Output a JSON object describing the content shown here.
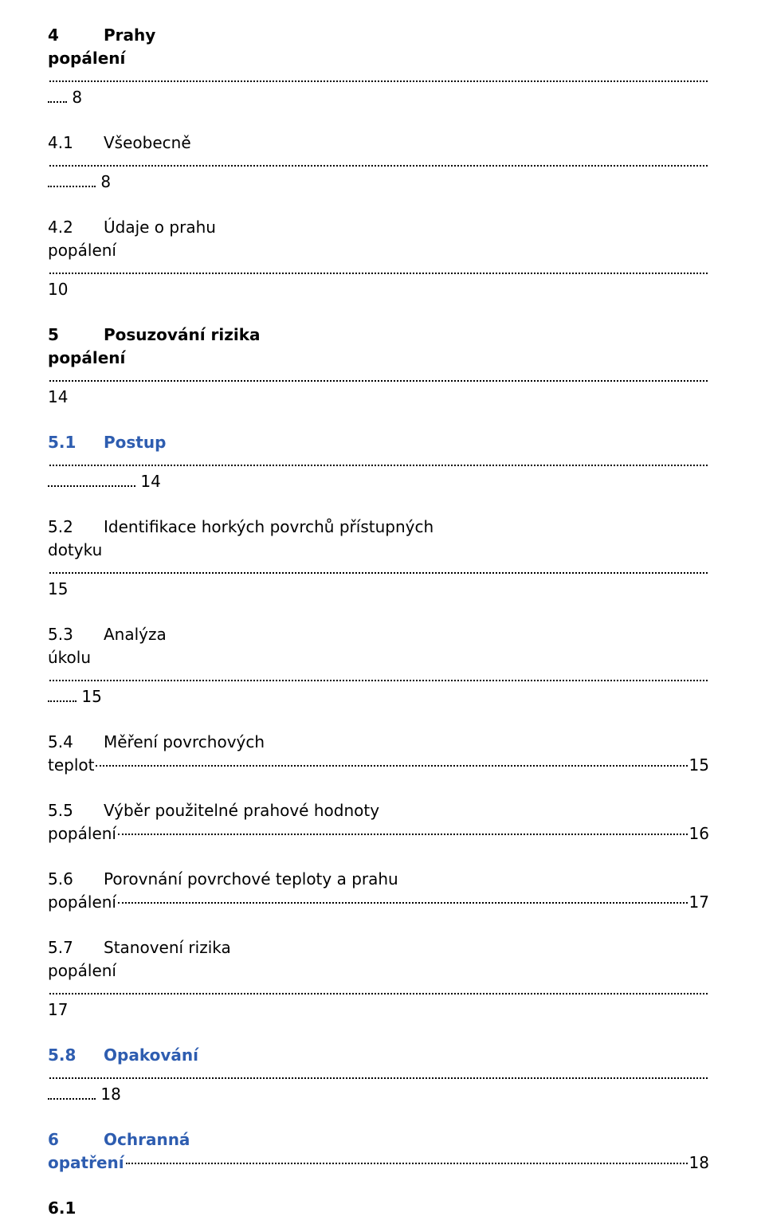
{
  "entries": [
    {
      "num": "4",
      "title": "Prahy",
      "cont": "popálení",
      "page": "8",
      "pageDotsWidth": 24,
      "bold": true
    },
    {
      "num": "4.1",
      "title": "Všeobecně",
      "cont": "",
      "page": "8",
      "pageDotsWidth": 60,
      "bold": false
    },
    {
      "num": "4.2",
      "title": "Údaje o prahu",
      "cont": "popálení",
      "page": "10",
      "pageDotsWidth": 0,
      "bold": false
    },
    {
      "num": "5",
      "title": "Posuzování rizika",
      "cont": "popálení",
      "page": "14",
      "pageDotsWidth": 0,
      "bold": true
    },
    {
      "num": "5.1",
      "title": "Postup",
      "cont": "",
      "page": "14",
      "pageDotsWidth": 110,
      "bold": false,
      "blue": true
    },
    {
      "num": "5.2",
      "title": "Identifikace horkých povrchů přístupných",
      "cont": "dotyku",
      "page": "15",
      "pageDotsWidth": 0,
      "bold": false
    },
    {
      "num": "5.3",
      "title": "Analýza",
      "cont": "úkolu",
      "page": "15",
      "pageDotsWidth": 36,
      "bold": false
    },
    {
      "num": "5.4",
      "title": "Měření povrchových",
      "cont": "teplot",
      "page": "15",
      "dotsBeforePage": true,
      "bold": false
    },
    {
      "num": "5.5",
      "title": "Výběr použitelné prahové hodnoty",
      "cont": "popálení",
      "page": "16",
      "dotsBeforePage": true,
      "bold": false
    },
    {
      "num": "5.6",
      "title": "Porovnání povrchové teploty a prahu",
      "cont": "popálení",
      "page": "17",
      "dotsBeforePage": true,
      "bold": false
    },
    {
      "num": "5.7",
      "title": "Stanovení rizika",
      "cont": "popálení",
      "page": "17",
      "pageDotsWidth": 0,
      "bold": false
    },
    {
      "num": "5.8",
      "title": "Opakování",
      "cont": "",
      "page": "18",
      "pageDotsWidth": 60,
      "bold": false,
      "blue": true
    },
    {
      "num": "6",
      "title": "Ochranná",
      "cont": "opatření",
      "page": "18",
      "dotsBeforePage": true,
      "bold": true,
      "blue": true
    }
  ],
  "trailing": "6.1"
}
